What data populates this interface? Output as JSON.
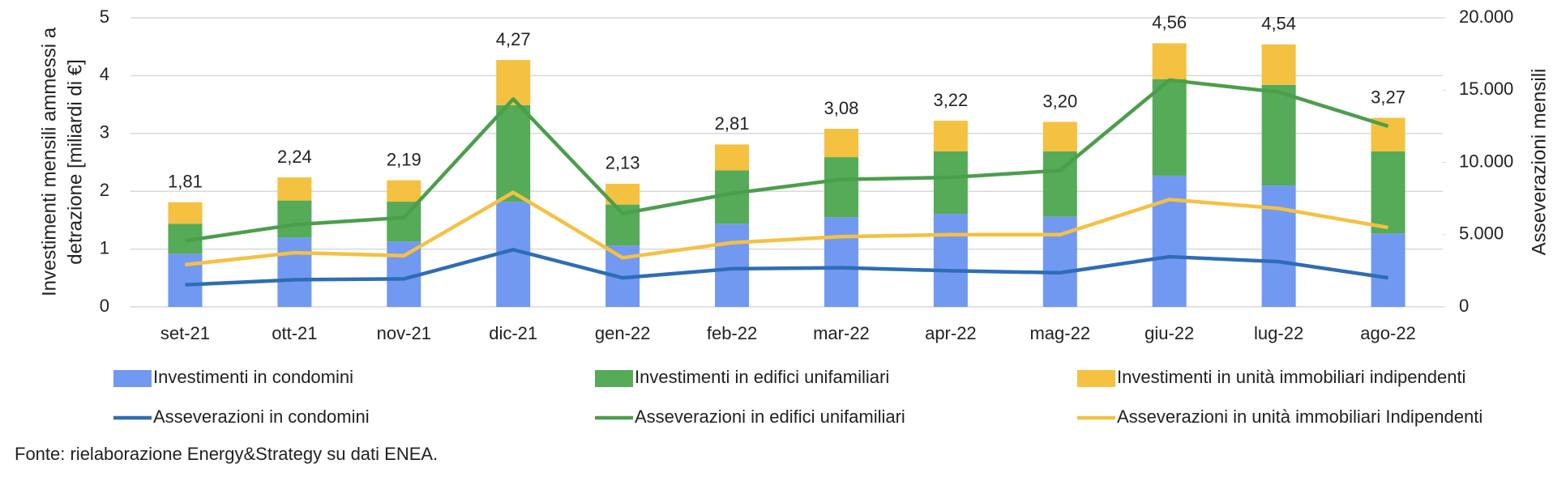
{
  "chart_data": {
    "type": "bar",
    "ylabel": [
      "Investimenti mensili ammessi a",
      "detrazione [miliardi di €]"
    ],
    "y2label": "Asseverazioni mensili",
    "source": "Fonte: rielaborazione Energy&Strategy su dati ENEA.",
    "categories": [
      "set-21",
      "ott-21",
      "nov-21",
      "dic-21",
      "gen-22",
      "feb-22",
      "mar-22",
      "apr-22",
      "mag-22",
      "giu-22",
      "lug-22",
      "ago-22"
    ],
    "series": [
      {
        "name": "Investimenti in condomini",
        "type": "bar",
        "color": "#7199f2",
        "values": [
          0.92,
          1.2,
          1.13,
          1.82,
          1.06,
          1.44,
          1.55,
          1.61,
          1.56,
          2.27,
          2.1,
          1.27
        ]
      },
      {
        "name": "Investimenti in edifici unifamiliari",
        "type": "bar",
        "color": "#55ab57",
        "values": [
          0.52,
          0.64,
          0.69,
          1.67,
          0.71,
          0.92,
          1.04,
          1.08,
          1.13,
          1.67,
          1.74,
          1.42
        ]
      },
      {
        "name": "Investimenti in unità immobiliari indipendenti",
        "type": "bar",
        "color": "#f4c141",
        "values": [
          0.37,
          0.4,
          0.37,
          0.78,
          0.36,
          0.45,
          0.49,
          0.53,
          0.51,
          0.62,
          0.7,
          0.58
        ]
      },
      {
        "name": "Asseverazioni in condomini",
        "type": "line",
        "axis": "y2",
        "color": "#2e6db5",
        "values": [
          1530,
          1880,
          1940,
          3960,
          2010,
          2640,
          2710,
          2500,
          2360,
          3470,
          3130,
          2010
        ]
      },
      {
        "name": "Asseverazioni in edifici unifamiliari",
        "type": "line",
        "axis": "y2",
        "color": "#4b9e4b",
        "values": [
          4580,
          5690,
          6180,
          14380,
          6460,
          7850,
          8820,
          8960,
          9440,
          15690,
          14860,
          12500
        ]
      },
      {
        "name": "Asseverazioni in unità immobiliari Indipendenti",
        "type": "line",
        "axis": "y2",
        "color": "#f4c141",
        "values": [
          2920,
          3750,
          3540,
          7920,
          3400,
          4440,
          4860,
          5000,
          5000,
          7430,
          6810,
          5490
        ]
      }
    ],
    "totals": [
      1.81,
      2.24,
      2.19,
      4.27,
      2.13,
      2.81,
      3.08,
      3.22,
      3.2,
      4.56,
      4.54,
      3.27
    ],
    "total_labels": [
      "1,81",
      "2,24",
      "2,19",
      "4,27",
      "2,13",
      "2,81",
      "3,08",
      "3,22",
      "3,20",
      "4,56",
      "4,54",
      "3,27"
    ],
    "ylim": [
      0,
      5
    ],
    "yticks": [
      0,
      1,
      2,
      3,
      4,
      5
    ],
    "y2lim": [
      0,
      20000
    ],
    "y2ticks": [
      0,
      {
        "value": 5000,
        "label": "5.000"
      },
      {
        "value": 10000,
        "label": "10.000"
      },
      {
        "value": 15000,
        "label": "15.000"
      },
      {
        "value": 20000,
        "label": "20.000"
      }
    ],
    "grid": true
  }
}
